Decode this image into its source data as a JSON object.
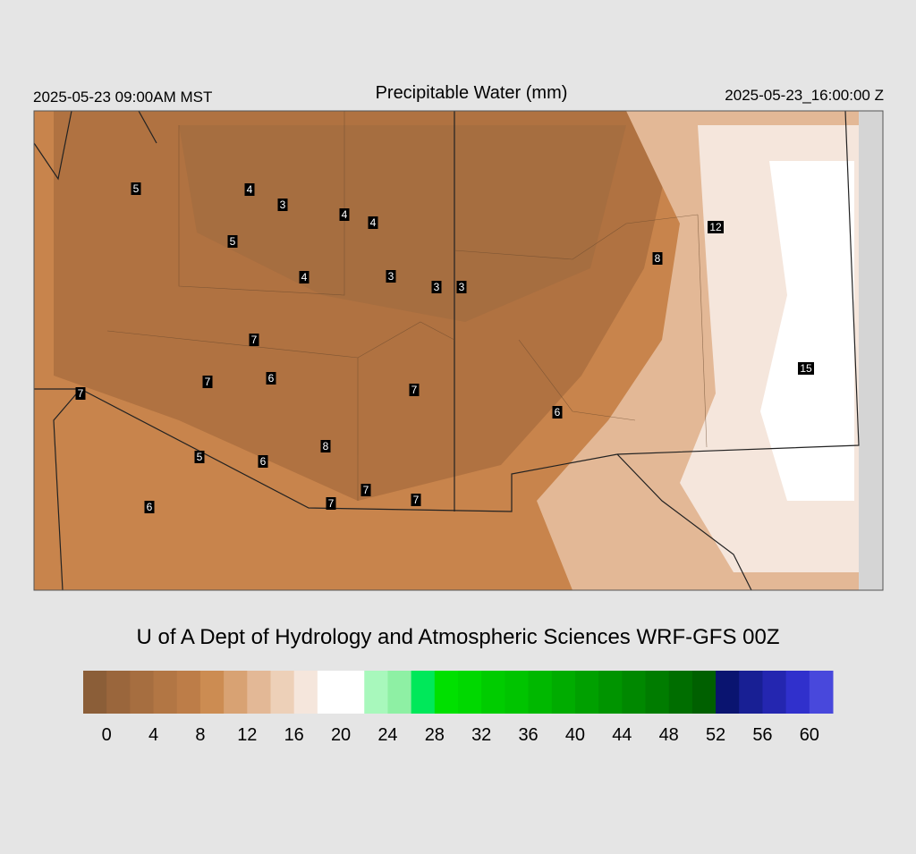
{
  "header": {
    "left": "2025-05-23 09:00AM MST",
    "title": "Precipitable Water (mm)",
    "right": "2025-05-23_16:00:00 Z"
  },
  "credit": "U of A Dept of Hydrology and Atmospheric Sciences WRF-GFS 00Z",
  "map": {
    "stations": [
      5,
      4,
      3,
      4,
      4,
      5,
      12,
      8,
      4,
      3,
      3,
      3,
      7,
      7,
      6,
      15,
      7,
      7,
      6,
      8,
      5,
      6,
      7,
      7,
      7,
      6
    ]
  },
  "colorbar": {
    "colors": [
      "#8b5e38",
      "#9a663c",
      "#a66e40",
      "#b27644",
      "#bd7d48",
      "#cc8c52",
      "#d8a273",
      "#e3b896",
      "#edd0b8",
      "#f5e6dc",
      "#ffffff",
      "#ffffff",
      "#a8f8bc",
      "#8ef0a4",
      "#00e85a",
      "#00e000",
      "#00d800",
      "#00cc00",
      "#00c400",
      "#00b800",
      "#00ac00",
      "#00a000",
      "#009400",
      "#008800",
      "#007c00",
      "#006e00",
      "#006000",
      "#0a1470",
      "#181f94",
      "#2426b0",
      "#3030cc",
      "#4848dc"
    ],
    "labels": [
      0,
      4,
      8,
      12,
      16,
      20,
      24,
      28,
      32,
      36,
      40,
      44,
      48,
      52,
      56,
      60
    ]
  }
}
